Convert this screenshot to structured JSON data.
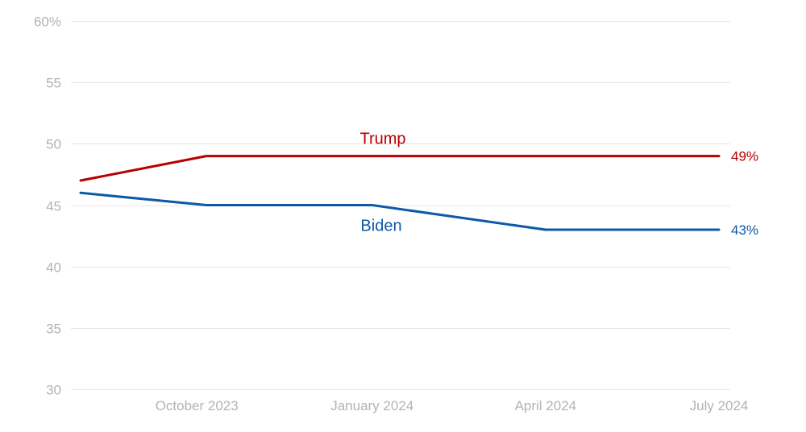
{
  "chart_data": {
    "type": "line",
    "x": [
      "2023-08-15",
      "2023-10-20",
      "2024-01-15",
      "2024-04-15",
      "2024-07-15"
    ],
    "x_ticks": [
      {
        "date": "2023-10-15",
        "label": "October 2023"
      },
      {
        "date": "2024-01-15",
        "label": "January 2024"
      },
      {
        "date": "2024-04-15",
        "label": "April 2024"
      },
      {
        "date": "2024-07-15",
        "label": "July 2024"
      }
    ],
    "y_ticks": [
      {
        "value": 30,
        "label": "30"
      },
      {
        "value": 35,
        "label": "35"
      },
      {
        "value": 40,
        "label": "40"
      },
      {
        "value": 45,
        "label": "45"
      },
      {
        "value": 50,
        "label": "50"
      },
      {
        "value": 55,
        "label": "55"
      },
      {
        "value": 60,
        "label": "60%"
      }
    ],
    "ylim": [
      30,
      60
    ],
    "xlim": [
      "2023-08-15",
      "2024-07-15"
    ],
    "grid": true,
    "title": "",
    "xlabel": "",
    "ylabel": "",
    "series": [
      {
        "name": "Trump",
        "color": "#b80000",
        "values": [
          47,
          49,
          49,
          49,
          49
        ],
        "end_label": "49%"
      },
      {
        "name": "Biden",
        "color": "#0c5aa6",
        "values": [
          46,
          45,
          45,
          43,
          43
        ],
        "end_label": "43%"
      }
    ]
  }
}
